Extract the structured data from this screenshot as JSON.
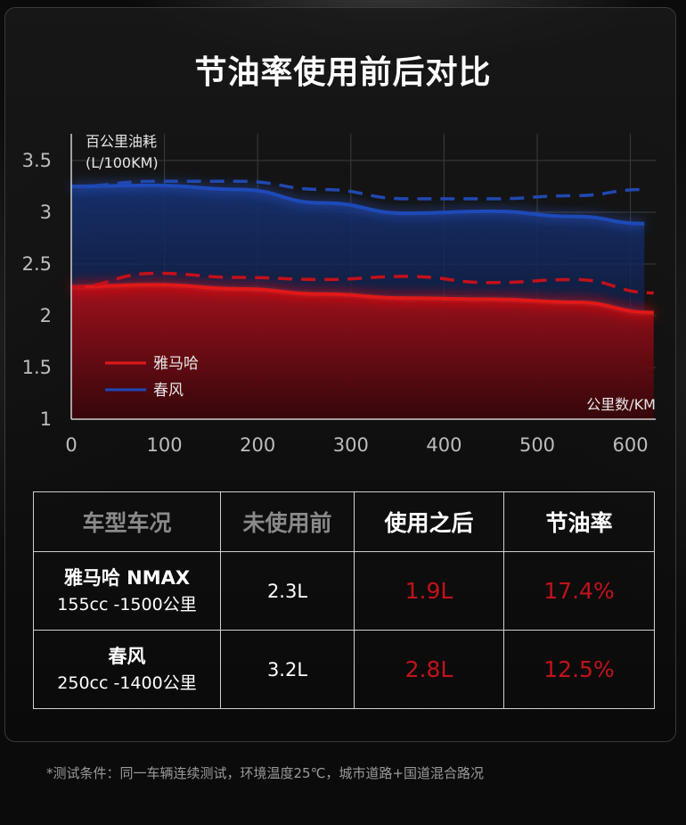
{
  "page": {
    "title": "节油率使用前后对比"
  },
  "chart_data": {
    "type": "area",
    "ylabel_line1": "百公里油耗",
    "ylabel_line2": "(L/100KM)",
    "xlabel": "公里数/KM",
    "xlim": [
      0,
      625
    ],
    "ylim": [
      1,
      3.5
    ],
    "x_ticks": [
      0,
      100,
      200,
      300,
      400,
      500,
      600
    ],
    "y_ticks": [
      1,
      1.5,
      2,
      2.5,
      3,
      3.5
    ],
    "y_tick_labels": [
      "1",
      "1.5",
      "2",
      "2.5",
      "3",
      "3.5"
    ],
    "grid": true,
    "legend_position": "bottom-left",
    "series": [
      {
        "name": "雅马哈",
        "color": "#d8101a",
        "solid_x": [
          0,
          90,
          180,
          270,
          360,
          450,
          540,
          625
        ],
        "solid_y": [
          2.28,
          2.3,
          2.26,
          2.21,
          2.17,
          2.16,
          2.13,
          2.03
        ],
        "dashed_x": [
          0,
          90,
          180,
          270,
          360,
          450,
          540,
          625
        ],
        "dashed_y": [
          2.28,
          2.41,
          2.37,
          2.35,
          2.38,
          2.32,
          2.35,
          2.22
        ]
      },
      {
        "name": "春风",
        "color": "#1b3fa0",
        "solid_x": [
          0,
          90,
          180,
          270,
          360,
          450,
          540,
          615
        ],
        "solid_y": [
          3.25,
          3.26,
          3.22,
          3.09,
          2.99,
          3.01,
          2.96,
          2.89
        ],
        "dashed_x": [
          0,
          90,
          180,
          270,
          360,
          450,
          540,
          615
        ],
        "dashed_y": [
          3.25,
          3.3,
          3.3,
          3.22,
          3.13,
          3.13,
          3.16,
          3.22
        ]
      }
    ]
  },
  "table": {
    "headers": [
      "车型车况",
      "未使用前",
      "使用之后",
      "节油率"
    ],
    "rows": [
      {
        "model": "雅马哈 NMAX",
        "spec": "155cc -1500公里",
        "before": "2.3L",
        "after": "1.9L",
        "rate": "17.4%"
      },
      {
        "model": "春风",
        "spec": "250cc -1400公里",
        "before": "3.2L",
        "after": "2.8L",
        "rate": "12.5%"
      }
    ]
  },
  "footnote": "*测试条件：同一车辆连续测试，环境温度25℃，城市道路+国道混合路况"
}
